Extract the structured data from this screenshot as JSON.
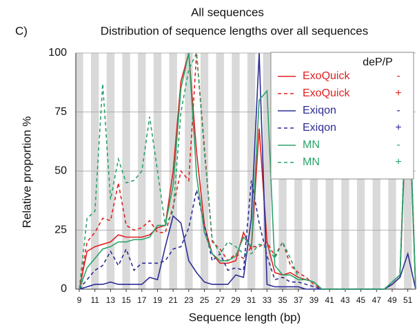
{
  "chart_data": {
    "type": "line",
    "panel_label": "C)",
    "title": "All sequences",
    "subtitle": "Distribution of sequence lengths over all sequences",
    "xlabel": "Sequence length (bp)",
    "ylabel": "Relative proportion %",
    "legend_title": "deP/P",
    "legend_position": "upper right",
    "x": [
      9,
      10,
      11,
      12,
      13,
      14,
      15,
      16,
      17,
      18,
      19,
      20,
      21,
      22,
      23,
      24,
      25,
      26,
      27,
      28,
      29,
      30,
      31,
      32,
      33,
      34,
      35,
      36,
      37,
      38,
      39,
      40,
      41,
      42,
      43,
      44,
      45,
      46,
      47,
      48,
      49,
      50,
      51,
      52
    ],
    "xlim": [
      9,
      52
    ],
    "xticks": [
      9,
      11,
      13,
      15,
      17,
      19,
      21,
      23,
      25,
      27,
      29,
      31,
      33,
      35,
      37,
      39,
      41,
      43,
      45,
      47,
      49,
      51
    ],
    "ylim": [
      0,
      100
    ],
    "yticks": [
      0,
      25,
      50,
      75,
      100
    ],
    "series": [
      {
        "name": "ExoQuick",
        "treatment": "-",
        "color": "#e02020",
        "dashed": false,
        "values": [
          0,
          16,
          18,
          19,
          20,
          23,
          22,
          22,
          22,
          23,
          26,
          27,
          50,
          88,
          100,
          58,
          27,
          15,
          11,
          11,
          12,
          24,
          17,
          68,
          20,
          7,
          6,
          7,
          5,
          4,
          3,
          0,
          0,
          0,
          0,
          0,
          0,
          0,
          0,
          0,
          2,
          5,
          92,
          0
        ]
      },
      {
        "name": "ExoQuick",
        "treatment": "+",
        "color": "#e02020",
        "dashed": true,
        "values": [
          0,
          20,
          24,
          30,
          29,
          45,
          27,
          25,
          26,
          29,
          24,
          24,
          35,
          50,
          46,
          100,
          60,
          20,
          17,
          12,
          15,
          13,
          18,
          18,
          20,
          14,
          20,
          10,
          7,
          5,
          2,
          0,
          0,
          0,
          0,
          0,
          0,
          0,
          0,
          0,
          3,
          6,
          95,
          0
        ]
      },
      {
        "name": "Exiqon",
        "treatment": "-",
        "color": "#2b2b95",
        "dashed": false,
        "values": [
          0,
          1,
          2,
          2,
          3,
          2,
          2,
          2,
          2,
          5,
          4,
          18,
          31,
          28,
          12,
          7,
          3,
          2,
          2,
          2,
          6,
          5,
          30,
          100,
          2,
          1,
          1,
          1,
          1,
          0,
          0,
          0,
          0,
          0,
          0,
          0,
          0,
          0,
          0,
          0,
          2,
          5,
          15,
          0
        ]
      },
      {
        "name": "Exiqon",
        "treatment": "+",
        "color": "#2b2b95",
        "dashed": true,
        "values": [
          0,
          4,
          8,
          10,
          16,
          10,
          17,
          8,
          11,
          11,
          11,
          12,
          17,
          18,
          26,
          42,
          27,
          12,
          15,
          8,
          9,
          8,
          46,
          28,
          14,
          4,
          5,
          3,
          3,
          2,
          1,
          0,
          0,
          0,
          0,
          0,
          0,
          0,
          0,
          0,
          3,
          6,
          100,
          0
        ]
      },
      {
        "name": "MN",
        "treatment": "-",
        "color": "#2aa36a",
        "dashed": false,
        "values": [
          0,
          9,
          13,
          17,
          18,
          20,
          20,
          21,
          21,
          22,
          27,
          27,
          44,
          85,
          100,
          48,
          24,
          15,
          12,
          12,
          14,
          22,
          18,
          80,
          84,
          10,
          6,
          6,
          4,
          4,
          3,
          0,
          0,
          0,
          0,
          0,
          0,
          0,
          0,
          0,
          3,
          6,
          98,
          0
        ]
      },
      {
        "name": "MN",
        "treatment": "+",
        "color": "#2aa36a",
        "dashed": true,
        "values": [
          0,
          30,
          33,
          87,
          38,
          55,
          45,
          46,
          50,
          73,
          50,
          27,
          33,
          75,
          93,
          100,
          58,
          21,
          15,
          20,
          18,
          15,
          15,
          19,
          18,
          13,
          20,
          13,
          5,
          4,
          3,
          0,
          0,
          0,
          0,
          0,
          0,
          0,
          0,
          0,
          3,
          6,
          90,
          0
        ]
      }
    ]
  }
}
